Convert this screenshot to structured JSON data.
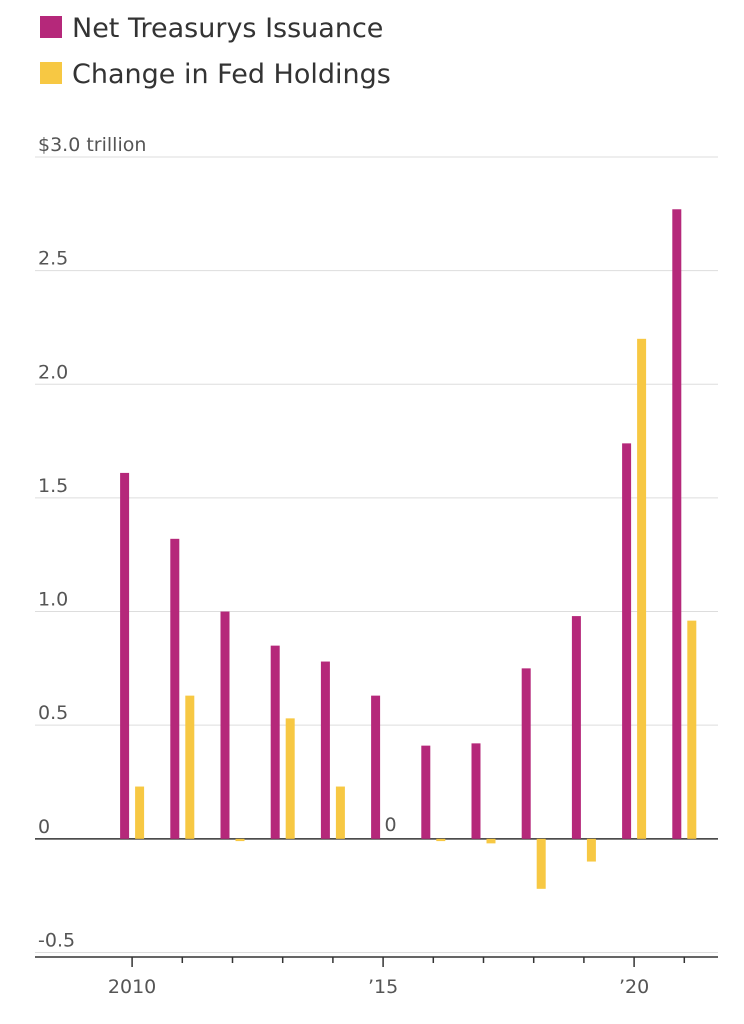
{
  "chart_data": {
    "type": "grouped-bar",
    "categories": [
      "2010",
      null,
      null,
      null,
      null,
      "’15",
      null,
      null,
      null,
      null,
      "’20",
      null
    ],
    "series": [
      {
        "name": "Net Treasurys Issuance",
        "color": "#b5287a",
        "values": [
          1.61,
          1.32,
          1.0,
          0.85,
          0.78,
          0.63,
          0.41,
          0.42,
          0.75,
          0.98,
          1.74,
          2.77
        ]
      },
      {
        "name": "Change in Fed Holdings",
        "color": "#f7c843",
        "values": [
          0.23,
          0.63,
          -0.01,
          0.53,
          0.23,
          0,
          -0.01,
          -0.02,
          -0.22,
          -0.1,
          2.2,
          0.96
        ],
        "value_labels": [
          null,
          null,
          null,
          null,
          null,
          "0",
          null,
          null,
          null,
          null,
          null,
          null
        ]
      }
    ],
    "ylim": [
      -0.52,
      3.0
    ],
    "yticks": [
      -0.5,
      0,
      0.5,
      {
        "value": 1,
        "label": "1.0"
      },
      1.5,
      {
        "value": 2,
        "label": "2.0"
      },
      2.5,
      {
        "value": 3,
        "label": "$3.0 trillion"
      }
    ],
    "grid": true
  }
}
